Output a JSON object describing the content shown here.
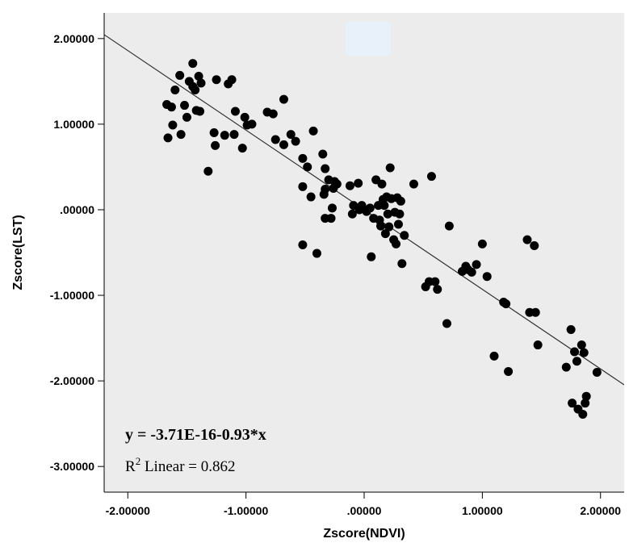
{
  "chart_data": {
    "type": "scatter",
    "xlabel": "Zscore(NDVI)",
    "ylabel": "Zscore(LST)",
    "xlim": [
      -2.2,
      2.2
    ],
    "ylim": [
      -3.3,
      2.3
    ],
    "x_ticks": [
      {
        "value": -2,
        "label": "-2.00000"
      },
      {
        "value": -1,
        "label": "-1.00000"
      },
      {
        "value": 0,
        "label": ".00000"
      },
      {
        "value": 1,
        "label": "1.00000"
      },
      {
        "value": 2,
        "label": "2.00000"
      }
    ],
    "y_ticks": [
      {
        "value": 2,
        "label": "2.00000"
      },
      {
        "value": 1,
        "label": "1.00000"
      },
      {
        "value": 0,
        "label": ".00000"
      },
      {
        "value": -1,
        "label": "-1.00000"
      },
      {
        "value": -2,
        "label": "-2.00000"
      },
      {
        "value": -3,
        "label": "-3.00000"
      }
    ],
    "grid": false,
    "background_color": "#ececec",
    "point_color": "#000000",
    "fit_line": {
      "intercept": 0,
      "slope": -0.93,
      "color": "#333333"
    },
    "equation_text": "y = -3.71E-16-0.93*x",
    "r2_prefix": "R",
    "r2_superscript": "2",
    "r2_text": " Linear = 0.862",
    "points": [
      [
        -1.67,
        1.23
      ],
      [
        -1.63,
        1.2
      ],
      [
        -1.6,
        1.4
      ],
      [
        -1.56,
        1.57
      ],
      [
        -1.52,
        1.22
      ],
      [
        -1.48,
        1.5
      ],
      [
        -1.45,
        1.71
      ],
      [
        -1.43,
        1.4
      ],
      [
        -1.4,
        1.56
      ],
      [
        -1.38,
        1.48
      ],
      [
        -1.45,
        1.44
      ],
      [
        -1.62,
        0.99
      ],
      [
        -1.66,
        0.84
      ],
      [
        -1.55,
        0.88
      ],
      [
        -1.5,
        1.08
      ],
      [
        -1.42,
        1.16
      ],
      [
        -1.39,
        1.15
      ],
      [
        -1.32,
        0.45
      ],
      [
        -1.27,
        0.9
      ],
      [
        -1.26,
        0.75
      ],
      [
        -1.25,
        1.52
      ],
      [
        -1.18,
        0.87
      ],
      [
        -1.15,
        1.47
      ],
      [
        -1.12,
        1.52
      ],
      [
        -1.1,
        0.88
      ],
      [
        -1.09,
        1.15
      ],
      [
        -1.03,
        0.72
      ],
      [
        -1.01,
        1.08
      ],
      [
        -0.99,
        0.99
      ],
      [
        -0.95,
        1.0
      ],
      [
        -0.82,
        1.14
      ],
      [
        -0.77,
        1.12
      ],
      [
        -0.75,
        0.82
      ],
      [
        -0.68,
        1.29
      ],
      [
        -0.68,
        0.76
      ],
      [
        -0.62,
        0.88
      ],
      [
        -0.58,
        0.8
      ],
      [
        -0.52,
        0.6
      ],
      [
        -0.48,
        0.5
      ],
      [
        -0.43,
        0.92
      ],
      [
        -0.35,
        0.65
      ],
      [
        -0.33,
        0.48
      ],
      [
        -0.3,
        0.35
      ],
      [
        -0.26,
        0.25
      ],
      [
        -0.25,
        0.33
      ],
      [
        -0.33,
        0.24
      ],
      [
        -0.34,
        0.18
      ],
      [
        -0.45,
        0.15
      ],
      [
        -0.52,
        0.27
      ],
      [
        -0.27,
        0.02
      ],
      [
        -0.33,
        -0.1
      ],
      [
        -0.28,
        -0.1
      ],
      [
        -0.52,
        -0.41
      ],
      [
        -0.4,
        -0.51
      ],
      [
        -0.23,
        0.3
      ],
      [
        -0.12,
        0.28
      ],
      [
        -0.09,
        0.05
      ],
      [
        -0.1,
        -0.05
      ],
      [
        -0.05,
        0.31
      ],
      [
        -0.04,
        0.0
      ],
      [
        -0.02,
        0.05
      ],
      [
        0.02,
        -0.02
      ],
      [
        0.05,
        0.02
      ],
      [
        0.06,
        -0.55
      ],
      [
        0.08,
        -0.1
      ],
      [
        0.1,
        0.35
      ],
      [
        0.12,
        0.05
      ],
      [
        0.13,
        -0.12
      ],
      [
        0.14,
        -0.19
      ],
      [
        0.15,
        0.3
      ],
      [
        0.16,
        0.12
      ],
      [
        0.17,
        0.05
      ],
      [
        0.18,
        -0.28
      ],
      [
        0.19,
        0.15
      ],
      [
        0.2,
        -0.05
      ],
      [
        0.21,
        -0.2
      ],
      [
        0.22,
        0.49
      ],
      [
        0.23,
        0.13
      ],
      [
        0.25,
        -0.35
      ],
      [
        0.26,
        -0.03
      ],
      [
        0.27,
        -0.4
      ],
      [
        0.28,
        0.14
      ],
      [
        0.29,
        -0.17
      ],
      [
        0.3,
        -0.05
      ],
      [
        0.31,
        0.1
      ],
      [
        0.32,
        -0.63
      ],
      [
        0.34,
        -0.3
      ],
      [
        0.42,
        0.3
      ],
      [
        0.52,
        -0.9
      ],
      [
        0.55,
        -0.84
      ],
      [
        0.57,
        0.39
      ],
      [
        0.6,
        -0.84
      ],
      [
        0.62,
        -0.93
      ],
      [
        0.7,
        -1.33
      ],
      [
        0.72,
        -0.19
      ],
      [
        0.83,
        -0.72
      ],
      [
        0.86,
        -0.66
      ],
      [
        0.88,
        -0.7
      ],
      [
        0.91,
        -0.73
      ],
      [
        0.95,
        -0.64
      ],
      [
        1.0,
        -0.4
      ],
      [
        1.04,
        -0.78
      ],
      [
        1.1,
        -1.71
      ],
      [
        1.18,
        -1.08
      ],
      [
        1.2,
        -1.1
      ],
      [
        1.22,
        -1.89
      ],
      [
        1.38,
        -0.35
      ],
      [
        1.4,
        -1.2
      ],
      [
        1.44,
        -0.42
      ],
      [
        1.45,
        -1.2
      ],
      [
        1.47,
        -1.58
      ],
      [
        1.71,
        -1.84
      ],
      [
        1.75,
        -1.4
      ],
      [
        1.76,
        -2.26
      ],
      [
        1.78,
        -1.66
      ],
      [
        1.8,
        -1.77
      ],
      [
        1.81,
        -2.33
      ],
      [
        1.84,
        -1.58
      ],
      [
        1.85,
        -2.39
      ],
      [
        1.86,
        -1.67
      ],
      [
        1.87,
        -2.26
      ],
      [
        1.88,
        -2.18
      ],
      [
        1.97,
        -1.9
      ]
    ]
  }
}
